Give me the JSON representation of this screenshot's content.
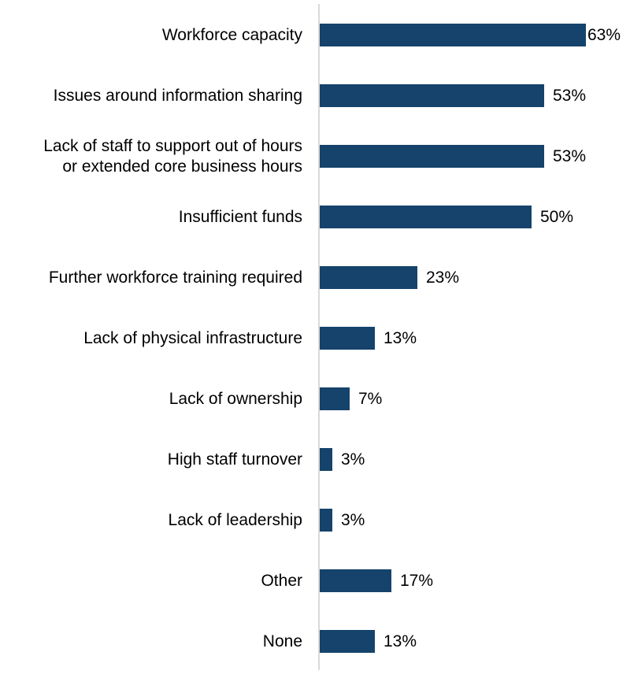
{
  "chart_data": {
    "type": "bar",
    "orientation": "horizontal",
    "title": "",
    "xlabel": "",
    "ylabel": "",
    "categories": [
      "Workforce capacity",
      "Issues around information sharing",
      "Lack of staff to support out of hours or extended core business hours",
      "Insufficient funds",
      "Further workforce training required",
      "Lack of physical infrastructure",
      "Lack of ownership",
      "High staff turnover",
      "Lack of leadership",
      "Other",
      "None"
    ],
    "values": [
      63,
      53,
      53,
      50,
      23,
      13,
      7,
      3,
      3,
      17,
      13
    ],
    "value_labels": [
      "63%",
      "53%",
      "53%",
      "50%",
      "23%",
      "13%",
      "7%",
      "3%",
      "3%",
      "17%",
      "13%"
    ],
    "unit": "%",
    "xlim": [
      0,
      63
    ],
    "grid": false,
    "legend": null,
    "bar_color": "#15436b",
    "axis_color": "#d9d9d9"
  },
  "rows": [
    {
      "label": "Workforce capacity",
      "value": 63,
      "value_label": "63%"
    },
    {
      "label": "Issues around information sharing",
      "value": 53,
      "value_label": "53%"
    },
    {
      "label": "Lack of staff to support out of hours\nor extended core business hours",
      "value": 53,
      "value_label": "53%"
    },
    {
      "label": "Insufficient funds",
      "value": 50,
      "value_label": "50%"
    },
    {
      "label": "Further workforce training required",
      "value": 23,
      "value_label": "23%"
    },
    {
      "label": "Lack of physical infrastructure",
      "value": 13,
      "value_label": "13%"
    },
    {
      "label": "Lack of ownership",
      "value": 7,
      "value_label": "7%"
    },
    {
      "label": "High staff turnover",
      "value": 3,
      "value_label": "3%"
    },
    {
      "label": "Lack of leadership",
      "value": 3,
      "value_label": "3%"
    },
    {
      "label": "Other",
      "value": 17,
      "value_label": "17%"
    },
    {
      "label": "None",
      "value": 13,
      "value_label": "13%"
    }
  ]
}
